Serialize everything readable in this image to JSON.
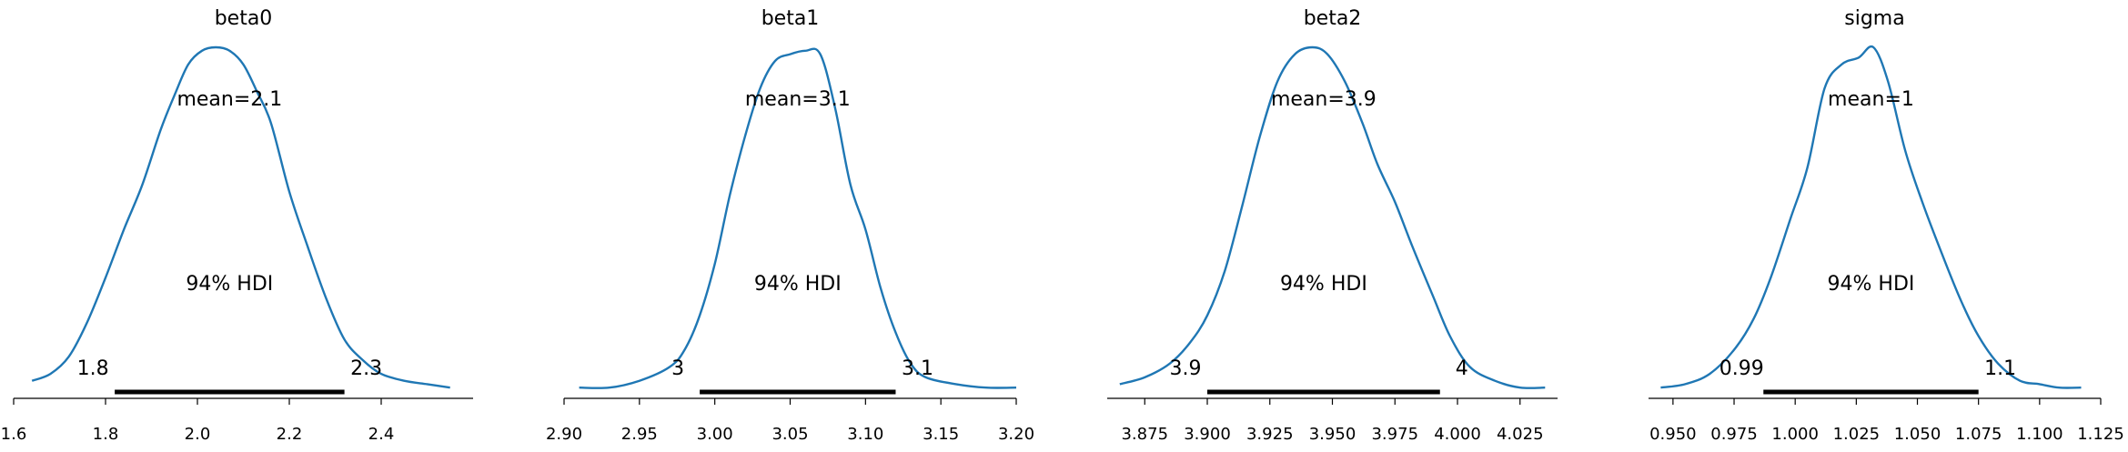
{
  "chart_data": [
    {
      "type": "area",
      "title": "beta0",
      "mean_label": "mean=2.1",
      "hdi_label": "94% HDI",
      "hdi_low_label": "1.8",
      "hdi_high_label": "2.3",
      "hdi": [
        1.82,
        2.32
      ],
      "xlim": [
        1.6,
        2.6
      ],
      "xticks": [
        1.6,
        1.8,
        2.0,
        2.2,
        2.4
      ],
      "xtick_labels": [
        "1.6",
        "1.8",
        "2.0",
        "2.2",
        "2.4"
      ],
      "series": [
        {
          "x": [
            1.64,
            1.68,
            1.72,
            1.76,
            1.8,
            1.84,
            1.88,
            1.92,
            1.95,
            1.98,
            2.01,
            2.04,
            2.07,
            2.1,
            2.13,
            2.16,
            2.2,
            2.24,
            2.28,
            2.32,
            2.36,
            2.4,
            2.45,
            2.5,
            2.55
          ],
          "y": [
            0.03,
            0.05,
            0.1,
            0.2,
            0.33,
            0.47,
            0.6,
            0.76,
            0.86,
            0.95,
            0.99,
            1.0,
            0.99,
            0.95,
            0.87,
            0.78,
            0.58,
            0.42,
            0.27,
            0.15,
            0.09,
            0.05,
            0.03,
            0.02,
            0.01
          ]
        }
      ]
    },
    {
      "type": "area",
      "title": "beta1",
      "mean_label": "mean=3.1",
      "hdi_label": "94% HDI",
      "hdi_low_label": "3",
      "hdi_high_label": "3.1",
      "hdi": [
        2.99,
        3.12
      ],
      "xlim": [
        2.9,
        3.2
      ],
      "xticks": [
        2.9,
        2.95,
        3.0,
        3.05,
        3.1,
        3.15,
        3.2
      ],
      "xtick_labels": [
        "2.90",
        "2.95",
        "3.00",
        "3.05",
        "3.10",
        "3.15",
        "3.20"
      ],
      "series": [
        {
          "x": [
            2.91,
            2.93,
            2.95,
            2.97,
            2.98,
            2.99,
            3.0,
            3.01,
            3.02,
            3.03,
            3.04,
            3.05,
            3.06,
            3.07,
            3.08,
            3.09,
            3.1,
            3.11,
            3.12,
            3.13,
            3.14,
            3.16,
            3.18,
            3.2
          ],
          "y": [
            0.01,
            0.01,
            0.03,
            0.07,
            0.12,
            0.22,
            0.37,
            0.57,
            0.74,
            0.88,
            0.96,
            0.98,
            0.99,
            0.98,
            0.82,
            0.6,
            0.47,
            0.3,
            0.17,
            0.08,
            0.04,
            0.02,
            0.01,
            0.01
          ]
        }
      ]
    },
    {
      "type": "area",
      "title": "beta2",
      "mean_label": "mean=3.9",
      "hdi_label": "94% HDI",
      "hdi_low_label": "3.9",
      "hdi_high_label": "4",
      "hdi": [
        3.9,
        3.993
      ],
      "xlim": [
        3.86,
        4.04
      ],
      "xticks": [
        3.875,
        3.9,
        3.925,
        3.95,
        3.975,
        4.0,
        4.025
      ],
      "xtick_labels": [
        "3.875",
        "3.900",
        "3.925",
        "3.950",
        "3.975",
        "4.000",
        "4.025"
      ],
      "series": [
        {
          "x": [
            3.865,
            3.875,
            3.885,
            3.893,
            3.9,
            3.907,
            3.914,
            3.921,
            3.928,
            3.935,
            3.942,
            3.948,
            3.955,
            3.962,
            3.968,
            3.975,
            3.982,
            3.99,
            3.997,
            4.005,
            4.015,
            4.025,
            4.035
          ],
          "y": [
            0.02,
            0.04,
            0.08,
            0.14,
            0.22,
            0.35,
            0.54,
            0.74,
            0.9,
            0.98,
            1.0,
            0.98,
            0.9,
            0.78,
            0.66,
            0.55,
            0.42,
            0.28,
            0.16,
            0.07,
            0.03,
            0.01,
            0.01
          ]
        }
      ]
    },
    {
      "type": "area",
      "title": "sigma",
      "mean_label": "mean=1",
      "hdi_label": "94% HDI",
      "hdi_low_label": "0.99",
      "hdi_high_label": "1.1",
      "hdi": [
        0.987,
        1.075
      ],
      "xlim": [
        0.94,
        1.125
      ],
      "xticks": [
        0.95,
        0.975,
        1.0,
        1.025,
        1.05,
        1.075,
        1.1,
        1.125
      ],
      "xtick_labels": [
        "0.950",
        "0.975",
        "1.000",
        "1.025",
        "1.050",
        "1.075",
        "1.100",
        "1.125"
      ],
      "series": [
        {
          "x": [
            0.945,
            0.955,
            0.965,
            0.975,
            0.983,
            0.99,
            0.998,
            1.005,
            1.012,
            1.019,
            1.026,
            1.032,
            1.038,
            1.045,
            1.052,
            1.06,
            1.068,
            1.075,
            1.083,
            1.092,
            1.1,
            1.108,
            1.117
          ],
          "y": [
            0.01,
            0.02,
            0.05,
            0.12,
            0.21,
            0.33,
            0.5,
            0.65,
            0.88,
            0.95,
            0.97,
            1.0,
            0.9,
            0.7,
            0.55,
            0.4,
            0.26,
            0.16,
            0.08,
            0.03,
            0.02,
            0.01,
            0.01
          ]
        }
      ]
    }
  ]
}
